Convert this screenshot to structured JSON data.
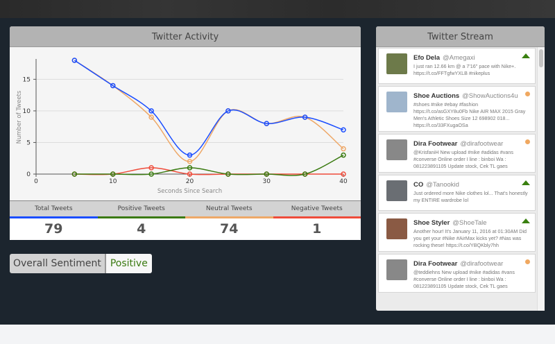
{
  "activity": {
    "title": "Twitter Activity",
    "stats": [
      {
        "label": "Total Tweets",
        "value": "79",
        "color": "#1a4dff"
      },
      {
        "label": "Positive Tweets",
        "value": "4",
        "color": "#3a7a10"
      },
      {
        "label": "Neutral Tweets",
        "value": "74",
        "color": "#eea868"
      },
      {
        "label": "Negative Tweets",
        "value": "1",
        "color": "#ef4b3a"
      }
    ]
  },
  "chart_data": {
    "type": "line",
    "xlabel": "Seconds Since Search",
    "ylabel": "Number of Tweets",
    "xlim": [
      0,
      40
    ],
    "ylim": [
      0,
      18
    ],
    "xticks": [
      0,
      10,
      20,
      30,
      40
    ],
    "yticks": [
      0,
      5,
      10,
      15
    ],
    "grid": true,
    "x": [
      5,
      10,
      15,
      20,
      25,
      30,
      35,
      40
    ],
    "series": [
      {
        "key": "neutral",
        "color": "#eea868",
        "values": [
          18,
          14,
          9,
          2,
          10,
          8,
          9,
          4
        ]
      },
      {
        "key": "negative",
        "color": "#ef4b3a",
        "values": [
          0,
          0,
          1,
          0,
          0,
          0,
          0,
          0
        ]
      },
      {
        "key": "positive",
        "color": "#3a7a10",
        "values": [
          0,
          0,
          0,
          1,
          0,
          0,
          0,
          3
        ]
      },
      {
        "key": "total",
        "color": "#1a4dff",
        "values": [
          18,
          14,
          10,
          3,
          10,
          8,
          9,
          7
        ]
      }
    ]
  },
  "sentiment": {
    "label": "Overall Sentiment",
    "value": "Positive"
  },
  "stream": {
    "title": "Twitter Stream",
    "tweets": [
      {
        "name": "Efo Dela",
        "handle": "@Amegaxi",
        "text": "I just ran 12.66 km @ a 7'16\" pace with Nike+. https://t.co/FFTgfwYXLB #nikeplus",
        "sentiment": "positive",
        "avatar": "#6d7a4a"
      },
      {
        "name": "Shoe Auctions",
        "handle": "@ShowAuctions4u",
        "text": "#shoes #nike #ebay #fashion https://t.co/asGXY8u0Fb Nike AIR MAX 2015 Gray Men's Athletic Shoes Size 12 698902 018... https://t.co/33FXugaOSa",
        "sentiment": "neutral",
        "avatar": "#9fb5cc"
      },
      {
        "name": "Dira Footwear",
        "handle": "@dirafootwear",
        "text": "@KrisfaniH New upload #nike #adidas #vans #converse Online order I line : binboi Wa : 081223891105 Update stock, Cek TL gaes",
        "sentiment": "neutral",
        "avatar": "#888"
      },
      {
        "name": "CO",
        "handle": "@Tanookid",
        "text": "Just ordered more Nike clothes lol... That's honestly my ENTIRE wardrobe lol",
        "sentiment": "positive",
        "avatar": "#6a6e73"
      },
      {
        "name": "Shoe Styler",
        "handle": "@ShoeTale",
        "text": "Another hour! It's January 11, 2016 at 01:30AM Did you get your #Nike #AirMax kicks yet? #Nas was rocking these! https://t.co/YBQKbly7hh",
        "sentiment": "positive",
        "avatar": "#8a5a44"
      },
      {
        "name": "Dira Footwear",
        "handle": "@dirafootwear",
        "text": "@teddiehns New upload #nike #adidas #vans #converse Online order I line : binboi Wa : 081223891105 Update stock, Cek TL gaes",
        "sentiment": "neutral",
        "avatar": "#888"
      }
    ]
  }
}
